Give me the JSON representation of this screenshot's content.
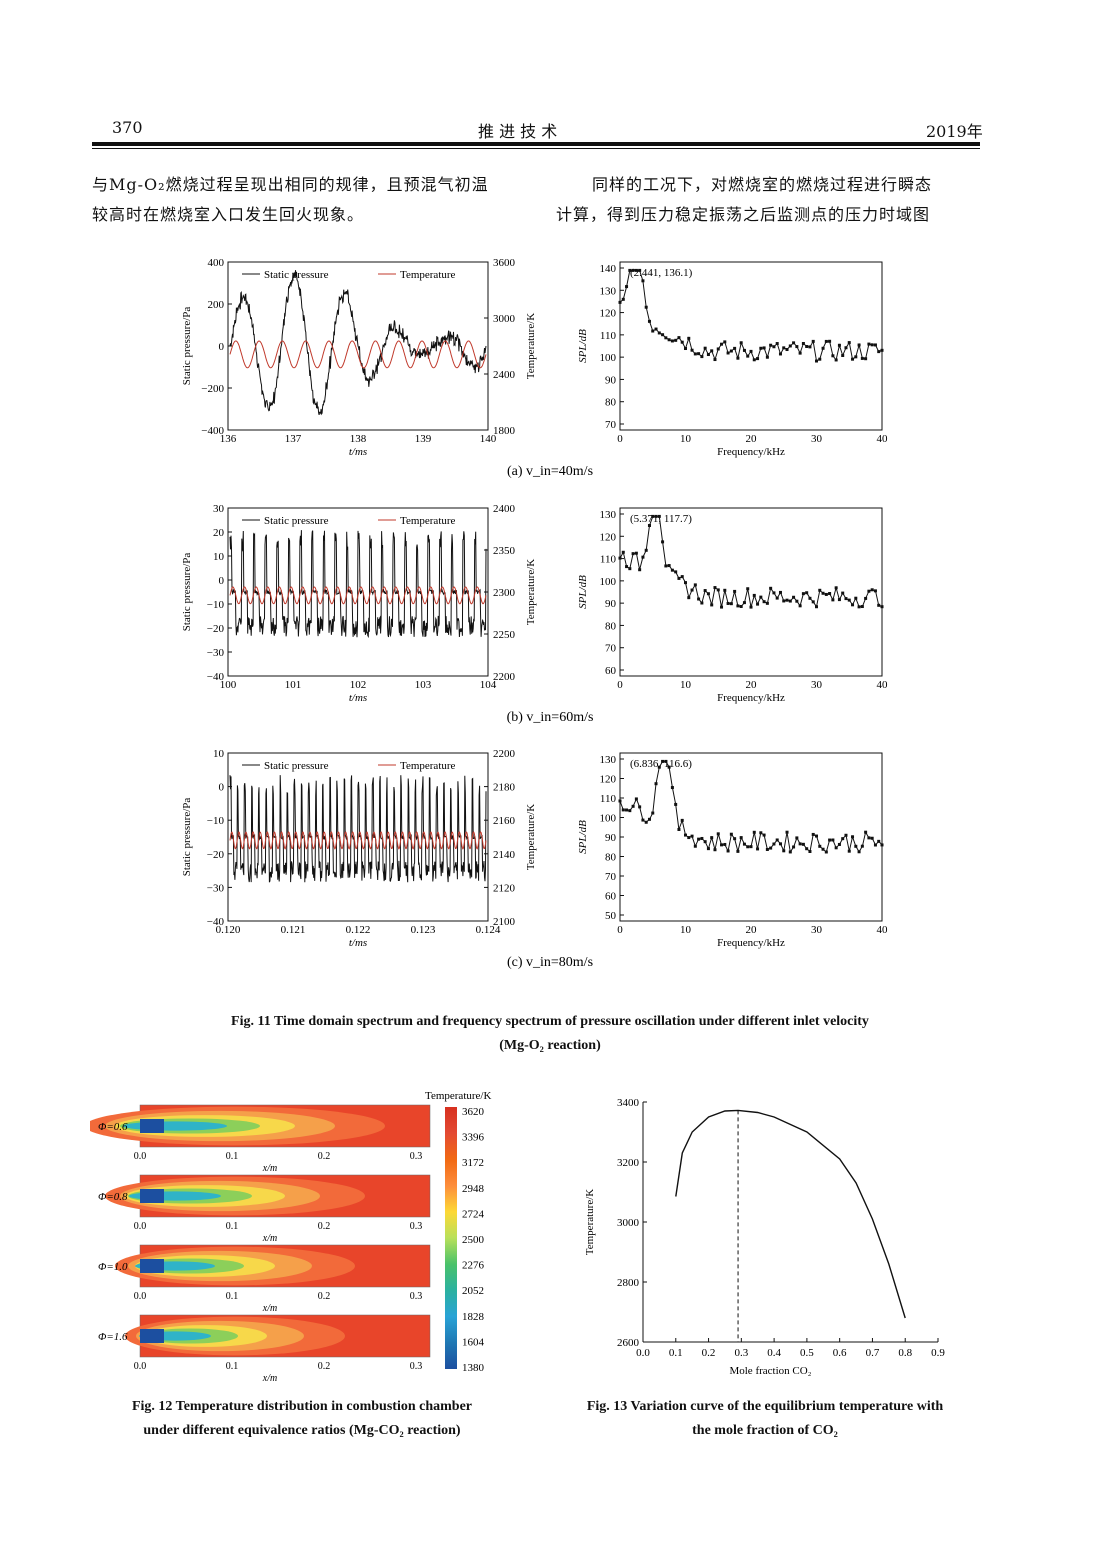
{
  "header": {
    "page_number": "370",
    "journal": "推 进 技 术",
    "year": "2019年"
  },
  "body": {
    "left_line1": "与Mg-O₂燃烧过程呈现出相同的规律，且预混气初温",
    "left_line2": "较高时在燃烧室入口发生回火现象。",
    "right_line1": "同样的工况下，对燃烧室的燃烧过程进行瞬态",
    "right_line2": "计算，得到压力稳定振荡之后监测点的压力时域图"
  },
  "fig11": {
    "caption_line1": "Fig. 11    Time domain spectrum and frequency spectrum of pressure oscillation under different inlet velocity",
    "caption_line2": "(Mg-O₂ reaction)",
    "legend_pressure": "Static pressure",
    "legend_temperature": "Temperature",
    "pressure_color": "#111111",
    "temperature_color": "#c0392b",
    "time_ylabel": "Static pressure/Pa",
    "time_y2label": "Temperature/K",
    "time_xlabel": "t/ms",
    "freq_ylabel": "SPL/dB",
    "freq_xlabel": "Frequency/kHz",
    "rows": [
      {
        "sublabel": "(a) v_in=40m/s",
        "peak_label": "(2.441, 136.1)",
        "time_xticks": [
          "136",
          "137",
          "138",
          "139",
          "140"
        ],
        "time_yticks": [
          "400",
          "200",
          "0",
          "−200",
          "−400"
        ],
        "time_y2ticks": [
          "3600",
          "3000",
          "2400",
          "1800"
        ],
        "freq_xticks": [
          "0",
          "10",
          "20",
          "30",
          "40"
        ],
        "freq_yticks": [
          "140",
          "130",
          "120",
          "110",
          "100",
          "90",
          "80",
          "70"
        ]
      },
      {
        "sublabel": "(b) v_in=60m/s",
        "peak_label": "(5.371, 117.7)",
        "time_xticks": [
          "100",
          "101",
          "102",
          "103",
          "104"
        ],
        "time_yticks": [
          "30",
          "20",
          "10",
          "0",
          "−10",
          "−20",
          "−30",
          "−40"
        ],
        "time_y2ticks": [
          "2400",
          "2350",
          "2300",
          "2250",
          "2200"
        ],
        "freq_xticks": [
          "0",
          "10",
          "20",
          "30",
          "40"
        ],
        "freq_yticks": [
          "130",
          "120",
          "110",
          "100",
          "90",
          "80",
          "70",
          "60"
        ]
      },
      {
        "sublabel": "(c) v_in=80m/s",
        "peak_label": "(6.836, 116.6)",
        "time_xticks": [
          "0.120",
          "0.121",
          "0.122",
          "0.123",
          "0.124"
        ],
        "time_yticks": [
          "10",
          "0",
          "−10",
          "−20",
          "−30",
          "−40"
        ],
        "time_y2ticks": [
          "2200",
          "2180",
          "2160",
          "2140",
          "2120",
          "2100"
        ],
        "freq_xticks": [
          "0",
          "10",
          "20",
          "30",
          "40"
        ],
        "freq_yticks": [
          "130",
          "120",
          "110",
          "100",
          "90",
          "80",
          "70",
          "60",
          "50"
        ]
      }
    ]
  },
  "fig12": {
    "caption_line1": "Fig. 12    Temperature distribution in combustion chamber",
    "caption_line2": "under different equivalence ratios (Mg-CO₂ reaction)",
    "colorbar_title": "Temperature/K",
    "colorbar_ticks": [
      "3620",
      "3396",
      "3172",
      "2948",
      "2724",
      "2500",
      "2276",
      "2052",
      "1828",
      "1604",
      "1380"
    ],
    "xlabel": "x/m",
    "xticks": [
      "0.0",
      "0.1",
      "0.2",
      "0.3"
    ],
    "panels": [
      {
        "label": "Φ=0.6"
      },
      {
        "label": "Φ=0.8"
      },
      {
        "label": "Φ=1.0"
      },
      {
        "label": "Φ=1.6"
      }
    ]
  },
  "fig13": {
    "caption_line1": "Fig. 13    Variation curve of the equilibrium temperature with",
    "caption_line2": "the mole fraction of CO₂",
    "chart_data": {
      "type": "line",
      "xlabel": "Mole fraction CO₂",
      "ylabel": "Temperature/K",
      "xlim": [
        0.0,
        0.9
      ],
      "ylim": [
        2600,
        3400
      ],
      "xticks": [
        "0.0",
        "0.1",
        "0.2",
        "0.3",
        "0.4",
        "0.5",
        "0.6",
        "0.7",
        "0.8",
        "0.9"
      ],
      "yticks": [
        "3400",
        "3200",
        "3000",
        "2800",
        "2600"
      ],
      "x": [
        0.1,
        0.12,
        0.15,
        0.2,
        0.25,
        0.29,
        0.35,
        0.4,
        0.5,
        0.6,
        0.65,
        0.7,
        0.75,
        0.8
      ],
      "y": [
        3085,
        3230,
        3300,
        3350,
        3370,
        3372,
        3365,
        3350,
        3300,
        3210,
        3130,
        3010,
        2860,
        2680
      ],
      "marker_x": 0.29
    }
  }
}
